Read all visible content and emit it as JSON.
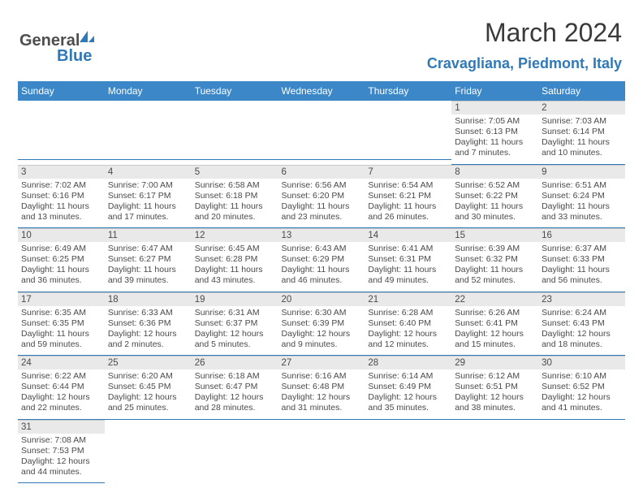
{
  "logo": {
    "part1": "General",
    "part2": "Blue"
  },
  "title": "March 2024",
  "location": "Cravagliana, Piedmont, Italy",
  "colors": {
    "header_bg": "#3b87c8",
    "header_fg": "#ffffff",
    "accent": "#2f79b9",
    "daynum_bg": "#e9e9e9",
    "text": "#4a4a4a"
  },
  "weekdays": [
    "Sunday",
    "Monday",
    "Tuesday",
    "Wednesday",
    "Thursday",
    "Friday",
    "Saturday"
  ],
  "leading_blanks": 5,
  "days": [
    {
      "n": "1",
      "sunrise": "7:05 AM",
      "sunset": "6:13 PM",
      "daylight": "11 hours and 7 minutes."
    },
    {
      "n": "2",
      "sunrise": "7:03 AM",
      "sunset": "6:14 PM",
      "daylight": "11 hours and 10 minutes."
    },
    {
      "n": "3",
      "sunrise": "7:02 AM",
      "sunset": "6:16 PM",
      "daylight": "11 hours and 13 minutes."
    },
    {
      "n": "4",
      "sunrise": "7:00 AM",
      "sunset": "6:17 PM",
      "daylight": "11 hours and 17 minutes."
    },
    {
      "n": "5",
      "sunrise": "6:58 AM",
      "sunset": "6:18 PM",
      "daylight": "11 hours and 20 minutes."
    },
    {
      "n": "6",
      "sunrise": "6:56 AM",
      "sunset": "6:20 PM",
      "daylight": "11 hours and 23 minutes."
    },
    {
      "n": "7",
      "sunrise": "6:54 AM",
      "sunset": "6:21 PM",
      "daylight": "11 hours and 26 minutes."
    },
    {
      "n": "8",
      "sunrise": "6:52 AM",
      "sunset": "6:22 PM",
      "daylight": "11 hours and 30 minutes."
    },
    {
      "n": "9",
      "sunrise": "6:51 AM",
      "sunset": "6:24 PM",
      "daylight": "11 hours and 33 minutes."
    },
    {
      "n": "10",
      "sunrise": "6:49 AM",
      "sunset": "6:25 PM",
      "daylight": "11 hours and 36 minutes."
    },
    {
      "n": "11",
      "sunrise": "6:47 AM",
      "sunset": "6:27 PM",
      "daylight": "11 hours and 39 minutes."
    },
    {
      "n": "12",
      "sunrise": "6:45 AM",
      "sunset": "6:28 PM",
      "daylight": "11 hours and 43 minutes."
    },
    {
      "n": "13",
      "sunrise": "6:43 AM",
      "sunset": "6:29 PM",
      "daylight": "11 hours and 46 minutes."
    },
    {
      "n": "14",
      "sunrise": "6:41 AM",
      "sunset": "6:31 PM",
      "daylight": "11 hours and 49 minutes."
    },
    {
      "n": "15",
      "sunrise": "6:39 AM",
      "sunset": "6:32 PM",
      "daylight": "11 hours and 52 minutes."
    },
    {
      "n": "16",
      "sunrise": "6:37 AM",
      "sunset": "6:33 PM",
      "daylight": "11 hours and 56 minutes."
    },
    {
      "n": "17",
      "sunrise": "6:35 AM",
      "sunset": "6:35 PM",
      "daylight": "11 hours and 59 minutes."
    },
    {
      "n": "18",
      "sunrise": "6:33 AM",
      "sunset": "6:36 PM",
      "daylight": "12 hours and 2 minutes."
    },
    {
      "n": "19",
      "sunrise": "6:31 AM",
      "sunset": "6:37 PM",
      "daylight": "12 hours and 5 minutes."
    },
    {
      "n": "20",
      "sunrise": "6:30 AM",
      "sunset": "6:39 PM",
      "daylight": "12 hours and 9 minutes."
    },
    {
      "n": "21",
      "sunrise": "6:28 AM",
      "sunset": "6:40 PM",
      "daylight": "12 hours and 12 minutes."
    },
    {
      "n": "22",
      "sunrise": "6:26 AM",
      "sunset": "6:41 PM",
      "daylight": "12 hours and 15 minutes."
    },
    {
      "n": "23",
      "sunrise": "6:24 AM",
      "sunset": "6:43 PM",
      "daylight": "12 hours and 18 minutes."
    },
    {
      "n": "24",
      "sunrise": "6:22 AM",
      "sunset": "6:44 PM",
      "daylight": "12 hours and 22 minutes."
    },
    {
      "n": "25",
      "sunrise": "6:20 AM",
      "sunset": "6:45 PM",
      "daylight": "12 hours and 25 minutes."
    },
    {
      "n": "26",
      "sunrise": "6:18 AM",
      "sunset": "6:47 PM",
      "daylight": "12 hours and 28 minutes."
    },
    {
      "n": "27",
      "sunrise": "6:16 AM",
      "sunset": "6:48 PM",
      "daylight": "12 hours and 31 minutes."
    },
    {
      "n": "28",
      "sunrise": "6:14 AM",
      "sunset": "6:49 PM",
      "daylight": "12 hours and 35 minutes."
    },
    {
      "n": "29",
      "sunrise": "6:12 AM",
      "sunset": "6:51 PM",
      "daylight": "12 hours and 38 minutes."
    },
    {
      "n": "30",
      "sunrise": "6:10 AM",
      "sunset": "6:52 PM",
      "daylight": "12 hours and 41 minutes."
    },
    {
      "n": "31",
      "sunrise": "7:08 AM",
      "sunset": "7:53 PM",
      "daylight": "12 hours and 44 minutes."
    }
  ],
  "labels": {
    "sunrise": "Sunrise: ",
    "sunset": "Sunset: ",
    "daylight": "Daylight: "
  }
}
